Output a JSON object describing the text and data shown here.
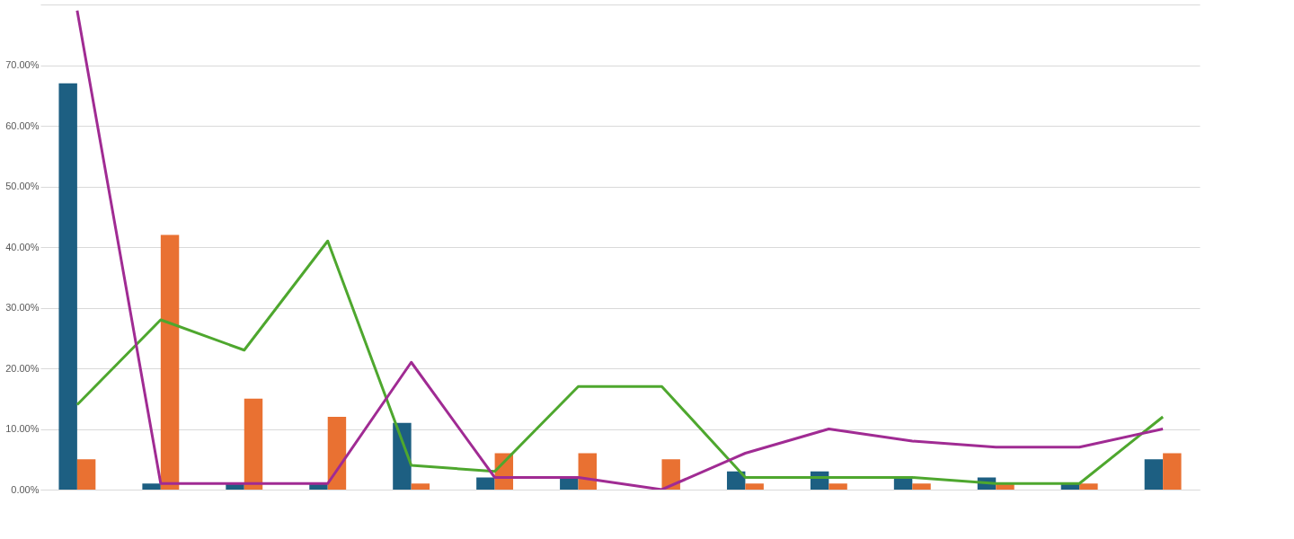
{
  "chart_data": {
    "type": "bar",
    "categories": [
      null,
      null,
      null,
      null,
      null,
      null,
      null,
      null,
      null,
      null,
      null,
      null,
      null,
      null
    ],
    "series": [
      {
        "color": "#1d5f82",
        "values": [
          67,
          1,
          1,
          1,
          11,
          2,
          2,
          0,
          3,
          3,
          2,
          2,
          1,
          5
        ]
      },
      {
        "color": "#e97132",
        "values": [
          5,
          42,
          15,
          12,
          1,
          6,
          6,
          5,
          1,
          1,
          1,
          1,
          1,
          6
        ]
      },
      {
        "type": "line",
        "color": "#4ea72e",
        "values": [
          14,
          28,
          23,
          41,
          4,
          3,
          17,
          17,
          2,
          2,
          2,
          1,
          1,
          12
        ]
      },
      {
        "type": "line",
        "color": "#a02b93",
        "values": [
          79,
          1,
          1,
          1,
          21,
          2,
          2,
          0,
          6,
          10,
          8,
          7,
          7,
          10
        ]
      }
    ],
    "ylim": [
      0,
      80
    ],
    "yticks": [
      {
        "value": 0,
        "label": "0.00%"
      },
      {
        "value": 10,
        "label": "10.00%"
      },
      {
        "value": 20,
        "label": "20.00%"
      },
      {
        "value": 30,
        "label": "30.00%"
      },
      {
        "value": 40,
        "label": "40.00%"
      },
      {
        "value": 50,
        "label": "50.00%"
      },
      {
        "value": 60,
        "label": "60.00%"
      },
      {
        "value": 70,
        "label": "70.00%"
      },
      {
        "value": 80,
        "label": null
      }
    ],
    "grid": "y",
    "tick_labels": "y"
  }
}
